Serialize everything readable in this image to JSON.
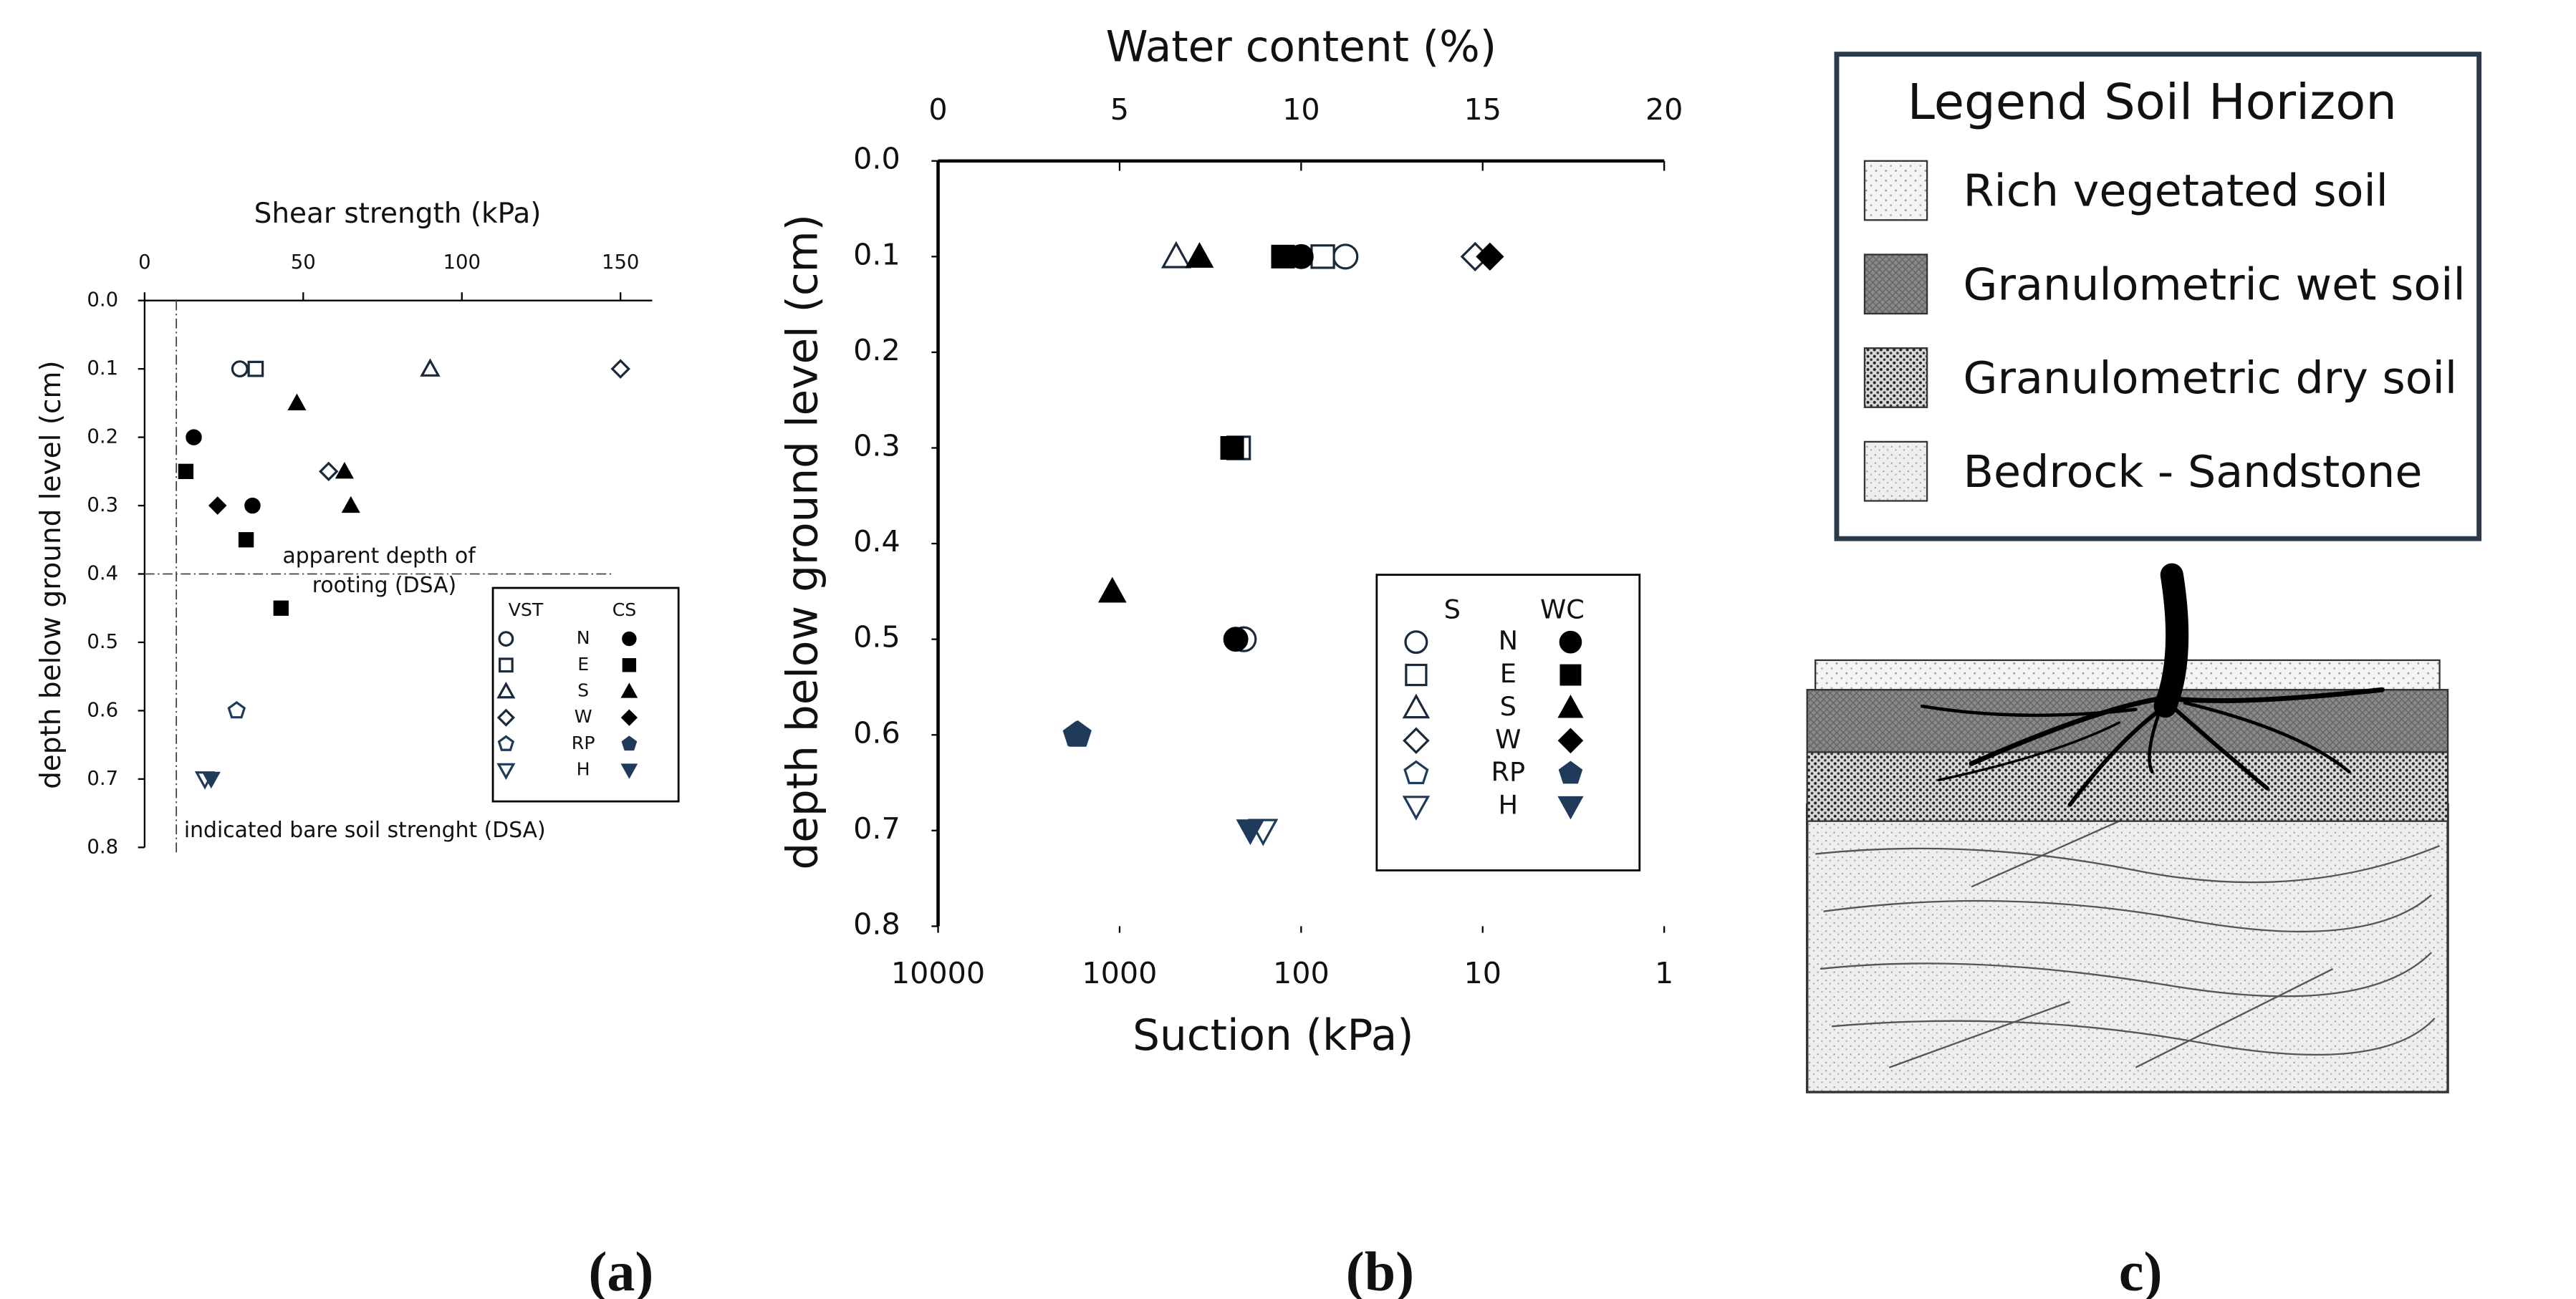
{
  "chart_data": [
    {
      "type": "scatter",
      "x_label": "Shear strength (kPa)",
      "y_label": "depth below ground level (cm)",
      "xlim": [
        0,
        160
      ],
      "xticks": [
        0,
        50,
        100,
        150
      ],
      "ylim": [
        0,
        0.8
      ],
      "yticks": [
        {
          "value": 0,
          "label": "0.0"
        },
        0.1,
        0.2,
        0.3,
        0.4,
        0.5,
        0.6,
        0.7,
        0.8
      ],
      "y_inverted": true,
      "reference_lines": [
        {
          "x": 10
        },
        {
          "y": 0.4
        }
      ],
      "annotations": [
        "apparent depth of",
        "rooting (DSA)",
        "indicated bare soil strenght (DSA)"
      ],
      "groups": [
        {
          "name": "VST",
          "filled": false,
          "series": [
            {
              "name": "N",
              "marker": "circle",
              "color": "#1a2a3a",
              "x": [
                30
              ],
              "y": [
                0.1
              ]
            },
            {
              "name": "E",
              "marker": "square",
              "color": "#1a2a3a",
              "x": [
                35
              ],
              "y": [
                0.1
              ]
            },
            {
              "name": "S",
              "marker": "triangle",
              "color": "#1a2a3a",
              "x": [
                90
              ],
              "y": [
                0.1
              ]
            },
            {
              "name": "W",
              "marker": "diamond",
              "color": "#1a2a3a",
              "x": [
                150,
                58
              ],
              "y": [
                0.1,
                0.25
              ]
            },
            {
              "name": "RP",
              "marker": "pentagon",
              "color": "#1f3a5a",
              "x": [
                29
              ],
              "y": [
                0.6
              ]
            },
            {
              "name": "H",
              "marker": "triangle-down",
              "color": "#1f3a5a",
              "x": [
                19
              ],
              "y": [
                0.7
              ]
            }
          ]
        },
        {
          "name": "CS",
          "filled": true,
          "series": [
            {
              "name": "N",
              "marker": "circle",
              "color": "#000000",
              "x": [
                15.5,
                34
              ],
              "y": [
                0.2,
                0.3
              ]
            },
            {
              "name": "E",
              "marker": "square",
              "color": "#000000",
              "x": [
                13,
                32,
                43
              ],
              "y": [
                0.25,
                0.35,
                0.45
              ]
            },
            {
              "name": "S",
              "marker": "triangle",
              "color": "#000000",
              "x": [
                48,
                63,
                65
              ],
              "y": [
                0.15,
                0.25,
                0.3
              ]
            },
            {
              "name": "W",
              "marker": "diamond",
              "color": "#000000",
              "x": [
                23
              ],
              "y": [
                0.3
              ]
            },
            {
              "name": "RP",
              "marker": "pentagon",
              "color": "#1f3a5a",
              "x": [],
              "y": []
            },
            {
              "name": "H",
              "marker": "triangle-down",
              "color": "#1f3a5a",
              "x": [
                21
              ],
              "y": [
                0.7
              ]
            }
          ]
        }
      ]
    },
    {
      "type": "scatter",
      "x_label": "Water content (%)",
      "x2_label": "Suction (kPa)",
      "y_label": "depth below ground level  (cm)",
      "xlim": [
        0,
        20
      ],
      "xticks": [
        0,
        5,
        10,
        15,
        20
      ],
      "x2lim": [
        10000,
        1
      ],
      "x2ticks": [
        10000,
        1000,
        100,
        10,
        1
      ],
      "x2_log": true,
      "ylim": [
        0,
        0.8
      ],
      "yticks": [
        {
          "value": 0,
          "label": "0.0"
        },
        0.1,
        0.2,
        0.3,
        0.4,
        0.5,
        0.6,
        0.7,
        0.8
      ],
      "y_inverted": true,
      "groups": [
        {
          "name": "S",
          "filled": false,
          "axis": "x2",
          "series": [
            {
              "name": "N",
              "marker": "circle",
              "color": "#1a2a3a",
              "x": [
                57,
                207
              ],
              "y": [
                0.1,
                0.5
              ]
            },
            {
              "name": "E",
              "marker": "square",
              "color": "#1a2a3a",
              "x": [
                76,
                221
              ],
              "y": [
                0.1,
                0.3
              ]
            },
            {
              "name": "S",
              "marker": "triangle",
              "color": "#1a2a3a",
              "x": [
                488
              ],
              "y": [
                0.1
              ]
            },
            {
              "name": "W",
              "marker": "diamond",
              "color": "#1a2a3a",
              "x": [
                11
              ],
              "y": [
                0.1
              ]
            },
            {
              "name": "RP",
              "marker": "pentagon",
              "color": "#1f3a5a",
              "x": [
                1700
              ],
              "y": [
                0.6
              ]
            },
            {
              "name": "H",
              "marker": "triangle-down",
              "color": "#1f3a5a",
              "x": [
                162
              ],
              "y": [
                0.7
              ]
            }
          ]
        },
        {
          "name": "WC",
          "filled": true,
          "series": [
            {
              "name": "N",
              "marker": "circle",
              "color": "#000000",
              "x": [
                10,
                8.2
              ],
              "y": [
                0.1,
                0.5
              ]
            },
            {
              "name": "E",
              "marker": "square",
              "color": "#000000",
              "x": [
                9.5,
                8.1
              ],
              "y": [
                0.1,
                0.3
              ]
            },
            {
              "name": "S",
              "marker": "triangle",
              "color": "#000000",
              "x": [
                7.2,
                4.8
              ],
              "y": [
                0.1,
                0.45
              ]
            },
            {
              "name": "W",
              "marker": "diamond",
              "color": "#000000",
              "x": [
                15.2
              ],
              "y": [
                0.1
              ]
            },
            {
              "name": "RP",
              "marker": "pentagon",
              "color": "#1f3a5a",
              "x": [
                3.8
              ],
              "y": [
                0.6
              ]
            },
            {
              "name": "H",
              "marker": "triangle-down",
              "color": "#1f3a5a",
              "x": [
                8.6
              ],
              "y": [
                0.7
              ]
            }
          ]
        }
      ]
    }
  ],
  "diagram": {
    "legend_title": "Legend Soil Horizon",
    "items": [
      "Rich vegetated soil",
      "Granulometric wet soil",
      "Granulometric dry soil",
      "Bedrock - Sandstone"
    ]
  },
  "captions": [
    "(a)",
    "(b)",
    "c)"
  ]
}
